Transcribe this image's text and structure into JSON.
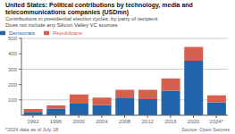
{
  "chart_data": {
    "type": "bar",
    "title": "United States: Political contributions by technology, media and telecommunications companies (USDmn)",
    "subtitle": [
      "Contributions in presidential election cycles, by party of recipient",
      "Does not include any Silicon Valley VC sources"
    ],
    "annotations": [
      "*2024 data as of July 18",
      "Source: Open Secrets"
    ],
    "categories": [
      "1992",
      "1996",
      "2000",
      "2004",
      "2008",
      "2012",
      "2016",
      "2020",
      "2024*"
    ],
    "series": [
      {
        "name": "Democrats",
        "color": "#2166ac",
        "values": [
          22,
          42,
          75,
          65,
          115,
          105,
          160,
          355,
          85
        ]
      },
      {
        "name": "Republicans",
        "color": "#d6604d",
        "values": [
          18,
          22,
          60,
          50,
          50,
          60,
          80,
          90,
          45
        ]
      }
    ],
    "stacked": true,
    "ylim": [
      0,
      500
    ],
    "yticks": [
      100,
      200,
      300,
      400,
      500
    ],
    "grid": true,
    "legend": "top-left"
  }
}
